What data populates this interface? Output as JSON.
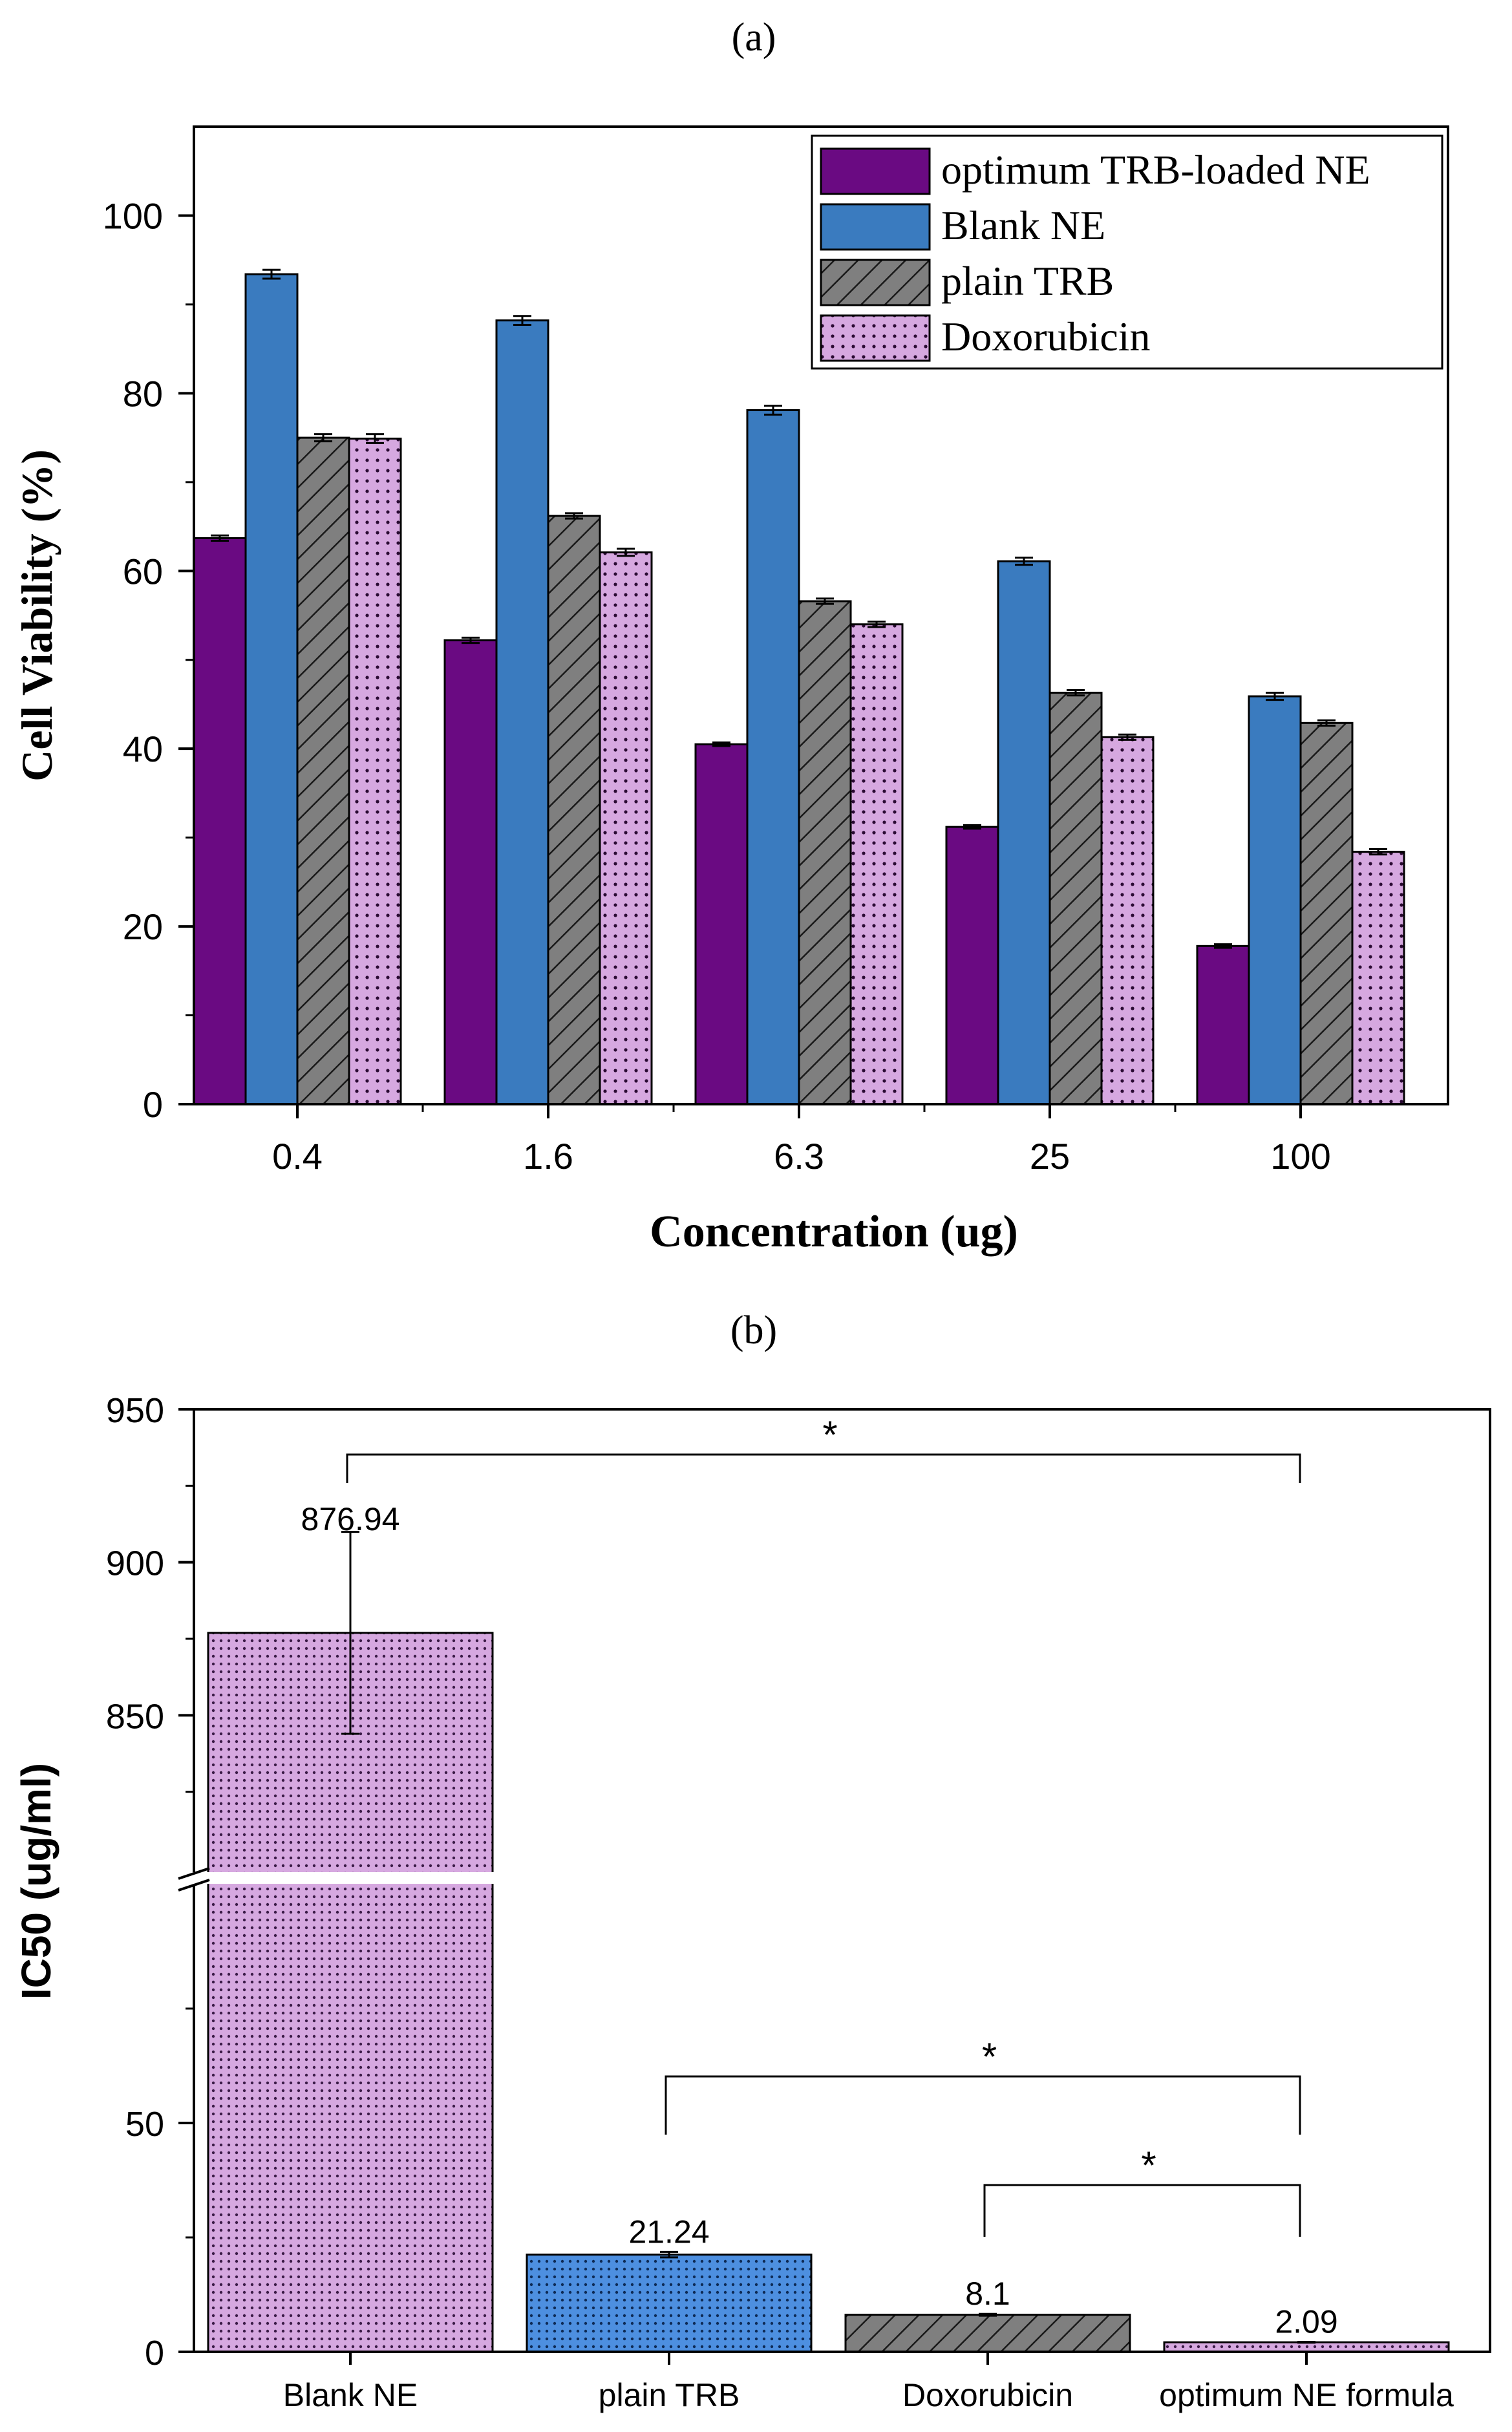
{
  "chart_data": [
    {
      "panel_label": "(a)",
      "type": "bar",
      "xlabel": "Concentration (ug)",
      "ylabel": "Cell Viability (%)",
      "ylim": [
        0,
        110
      ],
      "yticks": [
        0,
        20,
        40,
        60,
        80,
        100
      ],
      "categories": [
        "0.4",
        "1.6",
        "6.3",
        "25",
        "100"
      ],
      "legend_position": "top-right",
      "series": [
        {
          "name": "optimum TRB-loaded NE",
          "values": [
            63.7,
            52.2,
            40.5,
            31.2,
            17.8
          ],
          "errors": [
            0.3,
            0.3,
            0.2,
            0.2,
            0.2
          ],
          "color": "#6a0a82",
          "pattern": "solid"
        },
        {
          "name": "Blank NE",
          "values": [
            93.4,
            88.2,
            78.1,
            61.1,
            45.9
          ],
          "errors": [
            0.5,
            0.5,
            0.5,
            0.4,
            0.4
          ],
          "color": "#3a7bbf",
          "pattern": "solid"
        },
        {
          "name": "plain TRB",
          "values": [
            75.0,
            66.2,
            56.6,
            46.3,
            42.9
          ],
          "errors": [
            0.4,
            0.3,
            0.3,
            0.3,
            0.3
          ],
          "color": "#7f7f7f",
          "pattern": "hatch"
        },
        {
          "name": "Doxorubicin",
          "values": [
            74.9,
            62.1,
            54.0,
            41.3,
            28.4
          ],
          "errors": [
            0.5,
            0.4,
            0.3,
            0.3,
            0.3
          ],
          "color": "#d6a8e0",
          "pattern": "dots"
        }
      ]
    },
    {
      "panel_label": "(b)",
      "type": "bar",
      "xlabel": "",
      "ylabel": "IC50 (ug/ml)",
      "axis_break": {
        "lower_range": [
          0,
          100
        ],
        "upper_range": [
          800,
          950
        ]
      },
      "yticks_lower": [
        0,
        50
      ],
      "yticks_upper": [
        850,
        900,
        950
      ],
      "categories": [
        "Blank NE",
        "plain TRB",
        "Doxorubicin",
        "optimum NE formula"
      ],
      "values": [
        876.94,
        21.24,
        8.1,
        2.09
      ],
      "value_labels": [
        "876.94",
        "21.24",
        "8.1",
        "2.09"
      ],
      "errors": [
        33,
        0.6,
        0.2,
        0.1
      ],
      "colors": [
        "#d6a8e0",
        "#4d8fe0",
        "#7f7f7f",
        "#d6a8e0"
      ],
      "patterns": [
        "dots",
        "dots",
        "hatch",
        "dots"
      ],
      "significance": [
        {
          "from": "Blank NE",
          "to": "optimum NE formula",
          "label": "*"
        },
        {
          "from": "plain TRB",
          "to": "optimum NE formula",
          "label": "*"
        },
        {
          "from": "Doxorubicin",
          "to": "optimum NE formula",
          "label": "*"
        }
      ]
    }
  ]
}
